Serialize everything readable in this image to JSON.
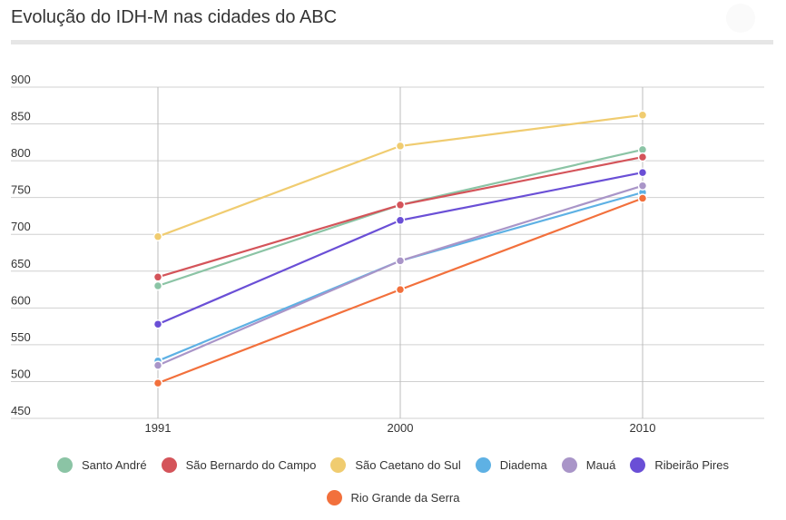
{
  "title": "Evolução do IDH-M nas cidades do ABC",
  "chart_data": {
    "type": "line",
    "categories": [
      "1991",
      "2000",
      "2010"
    ],
    "ylim": [
      450,
      900
    ],
    "yticks": [
      "450",
      "500",
      "550",
      "600",
      "650",
      "700",
      "750",
      "800",
      "850",
      "900"
    ],
    "grid": true,
    "legend_position": "bottom",
    "series": [
      {
        "name": "Santo André",
        "color": "#8bc4a5",
        "values": [
          630,
          740,
          815
        ]
      },
      {
        "name": "São Bernardo do Campo",
        "color": "#d4545a",
        "values": [
          642,
          740,
          805
        ]
      },
      {
        "name": "São Caetano do Sul",
        "color": "#f0cc70",
        "values": [
          697,
          820,
          862
        ]
      },
      {
        "name": "Diadema",
        "color": "#5eb1e4",
        "values": [
          528,
          664,
          757
        ]
      },
      {
        "name": "Mauá",
        "color": "#a995c8",
        "values": [
          522,
          664,
          766
        ]
      },
      {
        "name": "Ribeirão Pires",
        "color": "#6a4fd6",
        "values": [
          578,
          719,
          784
        ]
      },
      {
        "name": "Rio Grande da Serra",
        "color": "#f2703c",
        "values": [
          498,
          625,
          749
        ]
      }
    ]
  }
}
